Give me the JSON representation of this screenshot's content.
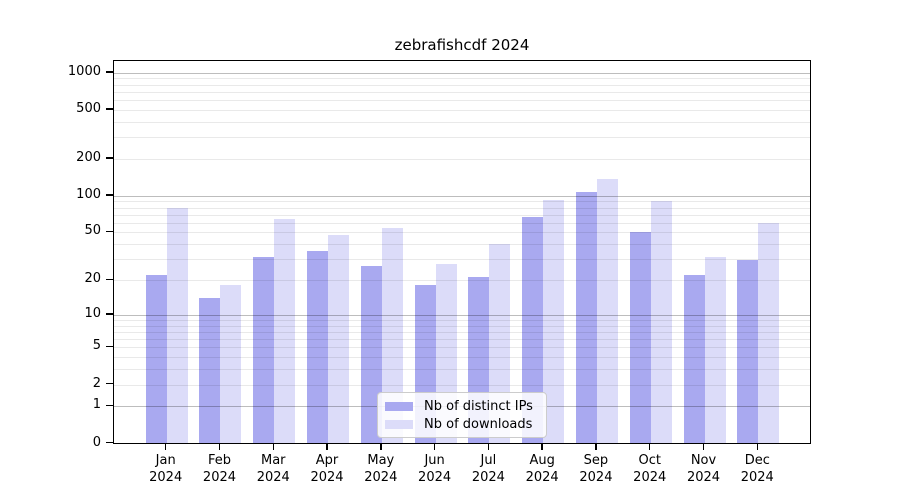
{
  "title": "zebrafishcdf 2024",
  "chart_data": {
    "type": "bar",
    "title": "zebrafishcdf 2024",
    "categories": [
      "Jan",
      "Feb",
      "Mar",
      "Apr",
      "May",
      "Jun",
      "Jul",
      "Aug",
      "Sep",
      "Oct",
      "Nov",
      "Dec"
    ],
    "category_year": "2024",
    "series": [
      {
        "name": "Nb of distinct IPs",
        "color": "#a9a9f0",
        "values": [
          22,
          14,
          31,
          35,
          26,
          18,
          21,
          66,
          106,
          50,
          22,
          29
        ]
      },
      {
        "name": "Nb of downloads",
        "color": "#dcdcf9",
        "values": [
          78,
          18,
          64,
          47,
          54,
          27,
          40,
          91,
          137,
          89,
          31,
          59
        ]
      }
    ],
    "y_scale": "log1p",
    "y_tick_values": [
      0,
      1,
      2,
      5,
      10,
      20,
      50,
      100,
      200,
      500,
      1000
    ],
    "y_tick_labels": [
      "0",
      "1",
      "2",
      "5",
      "10",
      "20",
      "50",
      "100",
      "200",
      "500",
      "1000"
    ],
    "y_major_gridlines": [
      1,
      10,
      100,
      1000
    ],
    "ylim": [
      0,
      1265
    ],
    "xlabel": "",
    "ylabel": "",
    "grid": "horizontal",
    "legend_position": "bottom-center"
  },
  "colors": {
    "bar_dark": "#a9a9f0",
    "bar_light": "#dcdcf9",
    "spine": "#000000",
    "grid_minor": "#e8e8e8",
    "grid_major": "#bdbdbd",
    "legend_border": "#cccccc"
  }
}
